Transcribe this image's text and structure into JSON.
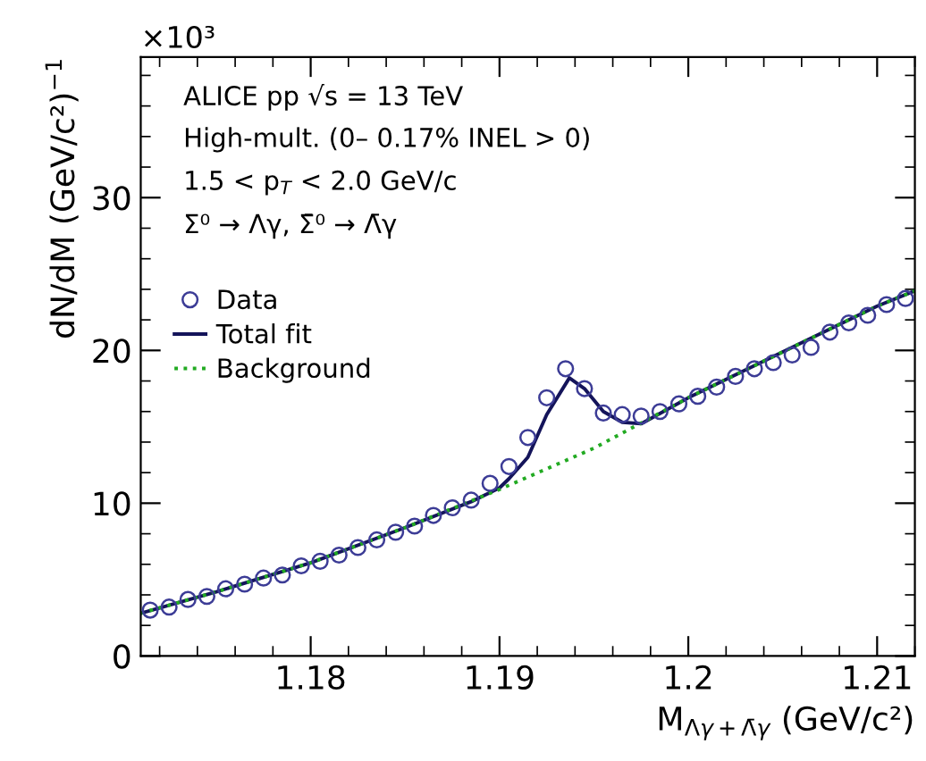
{
  "chart_data": {
    "type": "scatter",
    "xlabel": "M$_{Λγ+Λ̄γ}$ (GeV/c²)",
    "ylabel": "dN/dM (GeV/c²)$^{−1}$",
    "annotations": [
      "×10³",
      "ALICE pp √s = 13 TeV",
      "High-mult. (0– 0.17% INEL > 0)",
      "1.5 < p$_{T}$ < 2.0 GeV/c",
      "Σ⁰ → Λγ, Σ̄⁰ → Λ̄γ"
    ],
    "xlim": [
      1.171,
      1.212
    ],
    "ylim": [
      0,
      39.2
    ],
    "xticks": [
      1.18,
      1.19,
      {
        "value": 1.2,
        "label": "1.2"
      },
      1.21
    ],
    "yticks": [
      0,
      10,
      20,
      30
    ],
    "grid": false,
    "legend": "top left",
    "series": [
      {
        "name": "Data",
        "marker": "circle",
        "color": "#3c3c96",
        "x": [
          1.1715,
          1.1725,
          1.1735,
          1.1745,
          1.1755,
          1.1765,
          1.1775,
          1.1785,
          1.1795,
          1.1805,
          1.1815,
          1.1825,
          1.1835,
          1.1845,
          1.1855,
          1.1865,
          1.1875,
          1.1885,
          1.1895,
          1.1905,
          1.1915,
          1.1925,
          1.1935,
          1.1945,
          1.1955,
          1.1965,
          1.1975,
          1.1985,
          1.1995,
          1.2005,
          1.2015,
          1.2025,
          1.2035,
          1.2045,
          1.2055,
          1.2065,
          1.2075,
          1.2085,
          1.2095,
          1.2105,
          1.2115
        ],
        "values": [
          3.0,
          3.2,
          3.7,
          3.9,
          4.4,
          4.7,
          5.1,
          5.3,
          5.9,
          6.2,
          6.6,
          7.1,
          7.6,
          8.1,
          8.5,
          9.2,
          9.7,
          10.2,
          11.3,
          12.4,
          14.3,
          16.9,
          18.8,
          17.5,
          15.9,
          15.8,
          15.7,
          16.0,
          16.5,
          17.0,
          17.6,
          18.3,
          18.8,
          19.2,
          19.7,
          20.2,
          21.2,
          21.8,
          22.3,
          23.0,
          23.4
        ]
      },
      {
        "name": "Total fit",
        "type": "line",
        "line_style": "solid",
        "color": "#14145a",
        "x": [
          1.171,
          1.175,
          1.18,
          1.185,
          1.1885,
          1.19,
          1.1905,
          1.1915,
          1.1925,
          1.1937,
          1.1945,
          1.1955,
          1.1965,
          1.1975,
          1.2,
          1.205,
          1.21,
          1.212
        ],
        "values": [
          2.8,
          4.2,
          6.1,
          8.4,
          10.1,
          11.0,
          11.6,
          13.0,
          15.8,
          18.2,
          17.5,
          16.0,
          15.3,
          15.2,
          16.9,
          19.9,
          22.9,
          23.9
        ]
      },
      {
        "name": "Background",
        "type": "line",
        "line_style": "dotted",
        "color": "#22aa22",
        "x": [
          1.171,
          1.175,
          1.18,
          1.185,
          1.19,
          1.195,
          1.2,
          1.205,
          1.21,
          1.212
        ],
        "values": [
          2.8,
          4.2,
          6.1,
          8.4,
          10.9,
          13.6,
          16.9,
          19.9,
          22.9,
          23.9
        ]
      }
    ]
  }
}
